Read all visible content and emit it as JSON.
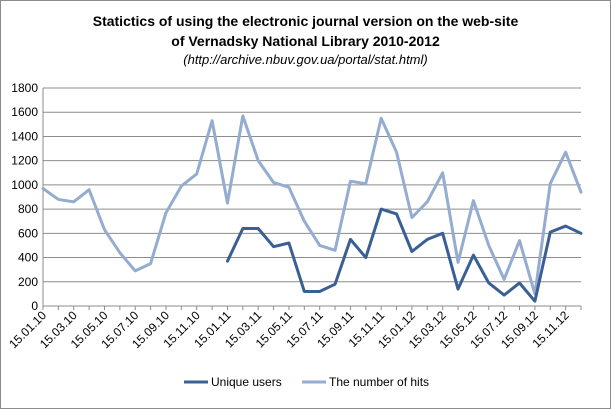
{
  "chart_data": {
    "type": "line",
    "title_line1": "Statictics of using the electronic journal version on the web-site",
    "title_line2": "of Vernadsky National Library 2010-2012",
    "subtitle": "(http://archive.nbuv.gov.ua/portal/stat.html)",
    "xlabel": "",
    "ylabel": "",
    "ylim": [
      0,
      1800
    ],
    "yticks": [
      "0",
      "200",
      "400",
      "600",
      "800",
      "1000",
      "1200",
      "1400",
      "1600",
      "1800"
    ],
    "grid": "horizontal",
    "legend_position": "bottom",
    "x": [
      "15.01.10",
      "15.02.10",
      "15.03.10",
      "15.04.10",
      "15.05.10",
      "15.06.10",
      "15.07.10",
      "15.08.10",
      "15.09.10",
      "15.10.10",
      "15.11.10",
      "15.12.10",
      "15.01.11",
      "15.02.11",
      "15.03.11",
      "15.04.11",
      "15.05.11",
      "15.06.11",
      "15.07.11",
      "15.08.11",
      "15.09.11",
      "15.10.11",
      "15.11.11",
      "15.12.11",
      "15.01.12",
      "15.02.12",
      "15.03.12",
      "15.04.12",
      "15.05.12",
      "15.06.12",
      "15.07.12",
      "15.08.12",
      "15.09.12",
      "15.10.12",
      "15.11.12",
      "15.12.12"
    ],
    "x_tick_labels": [
      "15.01.10",
      "15.03.10",
      "15.05.10",
      "15.07.10",
      "15.09.10",
      "15.11.10",
      "15.01.11",
      "15.03.11",
      "15.05.11",
      "15.07.11",
      "15.09.11",
      "15.11.11",
      "15.01.12",
      "15.03.12",
      "15.05.12",
      "15.07.12",
      "15.09.12",
      "15.11.12"
    ],
    "series": [
      {
        "name": "Unique users",
        "color": "#3a5f95",
        "values": [
          null,
          null,
          null,
          null,
          null,
          null,
          null,
          null,
          null,
          null,
          null,
          null,
          370,
          640,
          640,
          490,
          520,
          120,
          120,
          180,
          550,
          400,
          800,
          760,
          450,
          550,
          600,
          140,
          420,
          190,
          90,
          190,
          40,
          610,
          660,
          600
        ]
      },
      {
        "name": "The number of hits",
        "color": "#94acd0",
        "values": [
          970,
          880,
          860,
          960,
          630,
          440,
          290,
          350,
          770,
          990,
          1090,
          1530,
          850,
          1570,
          1200,
          1020,
          980,
          700,
          500,
          460,
          1030,
          1010,
          1550,
          1270,
          730,
          860,
          1100,
          360,
          870,
          500,
          220,
          540,
          100,
          1010,
          1270,
          940
        ]
      }
    ]
  }
}
